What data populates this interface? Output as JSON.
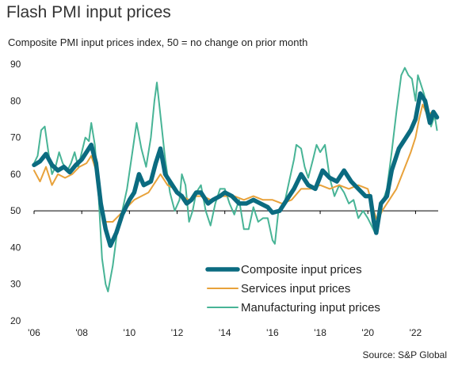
{
  "chart_data": {
    "type": "line",
    "title": "Flash PMI input prices",
    "subtitle": "Composite PMI input prices index, 50 = no change on prior month",
    "source": "Source: S&P Global",
    "xlabel": "",
    "ylabel": "",
    "xlim": [
      2006.0,
      2022.95
    ],
    "ylim": [
      20,
      90
    ],
    "yticks": [
      20,
      30,
      40,
      50,
      60,
      70,
      80,
      90
    ],
    "xticks": [
      {
        "value": 2006,
        "label": "'06"
      },
      {
        "value": 2008,
        "label": "'08"
      },
      {
        "value": 2010,
        "label": "'10"
      },
      {
        "value": 2012,
        "label": "'12"
      },
      {
        "value": 2014,
        "label": "'14"
      },
      {
        "value": 2016,
        "label": "'16"
      },
      {
        "value": 2018,
        "label": "'18"
      },
      {
        "value": 2020,
        "label": "'20"
      },
      {
        "value": 2022,
        "label": "'22"
      }
    ],
    "reference_line": 50,
    "grid": false,
    "legend_position": "bottom-right",
    "series": [
      {
        "name": "Composite input prices",
        "color": "#0b6b80",
        "width": 5.5,
        "points": [
          [
            2006.0,
            62.5
          ],
          [
            2006.25,
            63.5
          ],
          [
            2006.5,
            65.5
          ],
          [
            2006.75,
            62.5
          ],
          [
            2007.0,
            61
          ],
          [
            2007.25,
            62
          ],
          [
            2007.5,
            60.5
          ],
          [
            2007.75,
            62.5
          ],
          [
            2008.0,
            64
          ],
          [
            2008.4,
            68
          ],
          [
            2008.6,
            63
          ],
          [
            2008.8,
            52
          ],
          [
            2009.0,
            45
          ],
          [
            2009.2,
            40.5
          ],
          [
            2009.45,
            44
          ],
          [
            2009.7,
            49
          ],
          [
            2010.0,
            53
          ],
          [
            2010.2,
            55
          ],
          [
            2010.4,
            60
          ],
          [
            2010.6,
            57
          ],
          [
            2010.9,
            58
          ],
          [
            2011.1,
            63
          ],
          [
            2011.3,
            67
          ],
          [
            2011.5,
            60
          ],
          [
            2011.8,
            57
          ],
          [
            2012.0,
            55
          ],
          [
            2012.2,
            54
          ],
          [
            2012.4,
            52
          ],
          [
            2012.6,
            53
          ],
          [
            2012.8,
            55
          ],
          [
            2013.0,
            55
          ],
          [
            2013.3,
            52
          ],
          [
            2013.5,
            53
          ],
          [
            2013.8,
            54
          ],
          [
            2014.0,
            55
          ],
          [
            2014.3,
            54
          ],
          [
            2014.6,
            52
          ],
          [
            2014.9,
            52
          ],
          [
            2015.2,
            53
          ],
          [
            2015.5,
            52
          ],
          [
            2015.8,
            51
          ],
          [
            2016.0,
            49.5
          ],
          [
            2016.3,
            50
          ],
          [
            2016.6,
            53
          ],
          [
            2016.9,
            56
          ],
          [
            2017.2,
            60
          ],
          [
            2017.5,
            57
          ],
          [
            2017.8,
            56
          ],
          [
            2018.1,
            61
          ],
          [
            2018.4,
            59
          ],
          [
            2018.7,
            58
          ],
          [
            2019.0,
            61
          ],
          [
            2019.3,
            58
          ],
          [
            2019.6,
            56
          ],
          [
            2019.9,
            54
          ],
          [
            2020.1,
            54
          ],
          [
            2020.25,
            47
          ],
          [
            2020.35,
            44
          ],
          [
            2020.55,
            52
          ],
          [
            2020.8,
            54
          ],
          [
            2021.0,
            61
          ],
          [
            2021.3,
            67
          ],
          [
            2021.6,
            70
          ],
          [
            2021.8,
            72
          ],
          [
            2022.0,
            75
          ],
          [
            2022.2,
            82
          ],
          [
            2022.4,
            80
          ],
          [
            2022.6,
            74
          ],
          [
            2022.75,
            77
          ],
          [
            2022.9,
            75.5
          ]
        ]
      },
      {
        "name": "Services input prices",
        "color": "#e8a23b",
        "width": 2,
        "points": [
          [
            2006.0,
            61
          ],
          [
            2006.25,
            58
          ],
          [
            2006.5,
            62
          ],
          [
            2006.75,
            57
          ],
          [
            2007.0,
            60
          ],
          [
            2007.3,
            59
          ],
          [
            2007.6,
            60
          ],
          [
            2007.9,
            62
          ],
          [
            2008.2,
            63
          ],
          [
            2008.4,
            65
          ],
          [
            2008.6,
            61
          ],
          [
            2008.8,
            51
          ],
          [
            2009.0,
            47
          ],
          [
            2009.3,
            47
          ],
          [
            2009.6,
            49
          ],
          [
            2009.9,
            51
          ],
          [
            2010.2,
            53
          ],
          [
            2010.5,
            54
          ],
          [
            2010.8,
            55
          ],
          [
            2011.1,
            58
          ],
          [
            2011.3,
            60
          ],
          [
            2011.6,
            57
          ],
          [
            2011.9,
            56
          ],
          [
            2012.2,
            54
          ],
          [
            2012.5,
            53
          ],
          [
            2012.8,
            54
          ],
          [
            2013.1,
            54
          ],
          [
            2013.4,
            53
          ],
          [
            2013.7,
            54
          ],
          [
            2014.0,
            54
          ],
          [
            2014.4,
            54
          ],
          [
            2014.8,
            53
          ],
          [
            2015.2,
            54
          ],
          [
            2015.6,
            53
          ],
          [
            2016.0,
            53
          ],
          [
            2016.4,
            52
          ],
          [
            2016.8,
            53
          ],
          [
            2017.2,
            56
          ],
          [
            2017.6,
            56
          ],
          [
            2018.0,
            57
          ],
          [
            2018.4,
            56
          ],
          [
            2018.8,
            57
          ],
          [
            2019.2,
            56
          ],
          [
            2019.6,
            57
          ],
          [
            2020.0,
            56
          ],
          [
            2020.25,
            50
          ],
          [
            2020.4,
            47
          ],
          [
            2020.6,
            50
          ],
          [
            2020.9,
            53
          ],
          [
            2021.2,
            56
          ],
          [
            2021.5,
            61
          ],
          [
            2021.8,
            66
          ],
          [
            2022.0,
            70
          ],
          [
            2022.15,
            75
          ],
          [
            2022.3,
            79
          ],
          [
            2022.5,
            76
          ],
          [
            2022.7,
            77
          ],
          [
            2022.9,
            76
          ]
        ]
      },
      {
        "name": "Manufacturing input prices",
        "color": "#48b496",
        "width": 2,
        "points": [
          [
            2006.0,
            63
          ],
          [
            2006.15,
            65
          ],
          [
            2006.3,
            72
          ],
          [
            2006.45,
            73
          ],
          [
            2006.6,
            66
          ],
          [
            2006.75,
            60
          ],
          [
            2006.9,
            62
          ],
          [
            2007.05,
            66
          ],
          [
            2007.2,
            63
          ],
          [
            2007.4,
            61
          ],
          [
            2007.55,
            63
          ],
          [
            2007.7,
            66
          ],
          [
            2007.85,
            62
          ],
          [
            2008.0,
            66
          ],
          [
            2008.15,
            70
          ],
          [
            2008.3,
            69
          ],
          [
            2008.4,
            74
          ],
          [
            2008.55,
            68
          ],
          [
            2008.7,
            55
          ],
          [
            2008.85,
            37
          ],
          [
            2009.0,
            30
          ],
          [
            2009.1,
            28
          ],
          [
            2009.3,
            35
          ],
          [
            2009.5,
            45
          ],
          [
            2009.7,
            50
          ],
          [
            2009.9,
            56
          ],
          [
            2010.1,
            65
          ],
          [
            2010.3,
            74
          ],
          [
            2010.5,
            67
          ],
          [
            2010.7,
            62
          ],
          [
            2010.9,
            70
          ],
          [
            2011.05,
            80
          ],
          [
            2011.15,
            85
          ],
          [
            2011.3,
            76
          ],
          [
            2011.5,
            64
          ],
          [
            2011.7,
            55
          ],
          [
            2011.9,
            50
          ],
          [
            2012.1,
            53
          ],
          [
            2012.2,
            60
          ],
          [
            2012.35,
            57
          ],
          [
            2012.5,
            47
          ],
          [
            2012.65,
            50
          ],
          [
            2012.8,
            55
          ],
          [
            2013.0,
            57
          ],
          [
            2013.2,
            50
          ],
          [
            2013.4,
            46
          ],
          [
            2013.6,
            52
          ],
          [
            2013.8,
            56
          ],
          [
            2014.0,
            56
          ],
          [
            2014.2,
            52
          ],
          [
            2014.4,
            49
          ],
          [
            2014.6,
            53
          ],
          [
            2014.8,
            45
          ],
          [
            2015.0,
            45
          ],
          [
            2015.2,
            51
          ],
          [
            2015.4,
            47
          ],
          [
            2015.6,
            48
          ],
          [
            2015.8,
            48
          ],
          [
            2016.0,
            42
          ],
          [
            2016.1,
            41
          ],
          [
            2016.25,
            50
          ],
          [
            2016.5,
            52
          ],
          [
            2016.7,
            58
          ],
          [
            2016.9,
            64
          ],
          [
            2017.0,
            68
          ],
          [
            2017.2,
            67
          ],
          [
            2017.35,
            62
          ],
          [
            2017.5,
            59
          ],
          [
            2017.7,
            64
          ],
          [
            2017.85,
            68
          ],
          [
            2018.0,
            66
          ],
          [
            2018.2,
            68
          ],
          [
            2018.4,
            59
          ],
          [
            2018.6,
            54
          ],
          [
            2018.8,
            57
          ],
          [
            2019.0,
            55
          ],
          [
            2019.2,
            52
          ],
          [
            2019.4,
            53
          ],
          [
            2019.6,
            48
          ],
          [
            2019.8,
            50
          ],
          [
            2020.0,
            48
          ],
          [
            2020.15,
            46
          ],
          [
            2020.3,
            44
          ],
          [
            2020.45,
            47
          ],
          [
            2020.6,
            52
          ],
          [
            2020.8,
            56
          ],
          [
            2021.0,
            66
          ],
          [
            2021.2,
            77
          ],
          [
            2021.4,
            87
          ],
          [
            2021.55,
            89
          ],
          [
            2021.7,
            87
          ],
          [
            2021.85,
            86
          ],
          [
            2022.0,
            80
          ],
          [
            2022.1,
            87
          ],
          [
            2022.2,
            85
          ],
          [
            2022.35,
            82
          ],
          [
            2022.5,
            78
          ],
          [
            2022.65,
            73
          ],
          [
            2022.8,
            76
          ],
          [
            2022.9,
            72
          ]
        ]
      }
    ]
  }
}
